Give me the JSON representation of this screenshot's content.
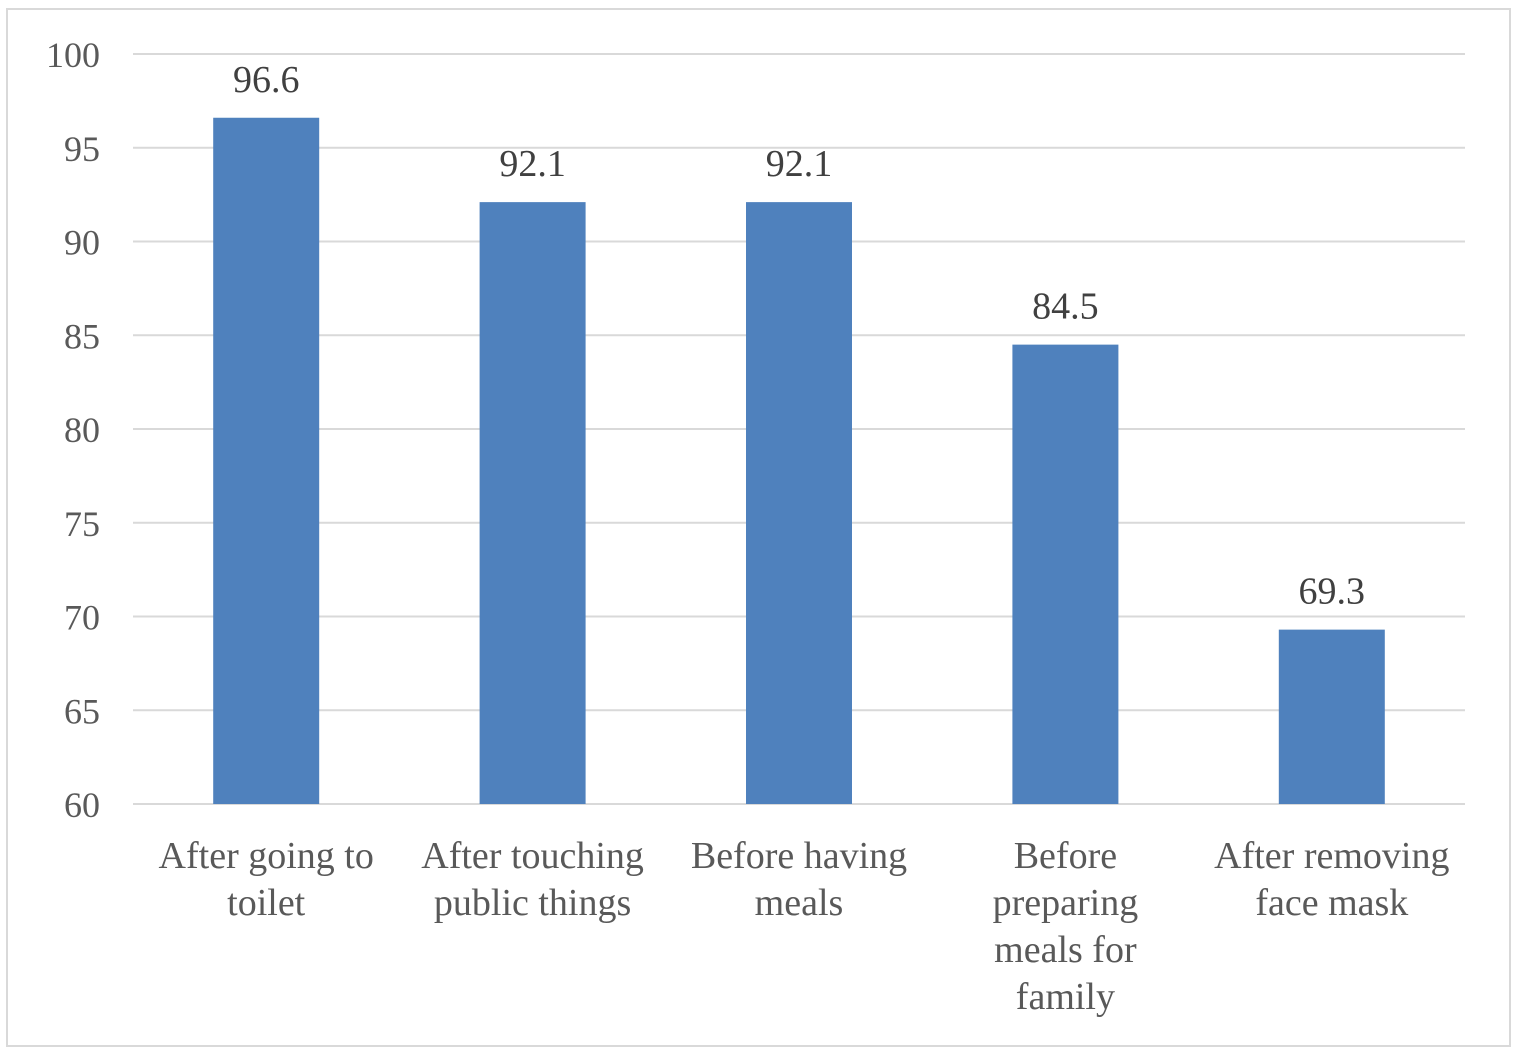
{
  "chart_data": {
    "type": "bar",
    "title": "",
    "xlabel": "",
    "ylabel": "",
    "ylim": [
      60,
      100
    ],
    "ytick_step": 5,
    "grid": true,
    "bar_color": "#4f81bd",
    "grid_color": "#d9d9d9",
    "categories": [
      [
        "After going to",
        "toilet"
      ],
      [
        "After touching",
        "public things"
      ],
      [
        "Before having",
        "meals"
      ],
      [
        "Before",
        "preparing",
        "meals for",
        "family"
      ],
      [
        "After removing",
        "face mask"
      ]
    ],
    "values": [
      96.6,
      92.1,
      92.1,
      84.5,
      69.3
    ],
    "data_labels": [
      "96.6",
      "92.1",
      "92.1",
      "84.5",
      "69.3"
    ]
  }
}
